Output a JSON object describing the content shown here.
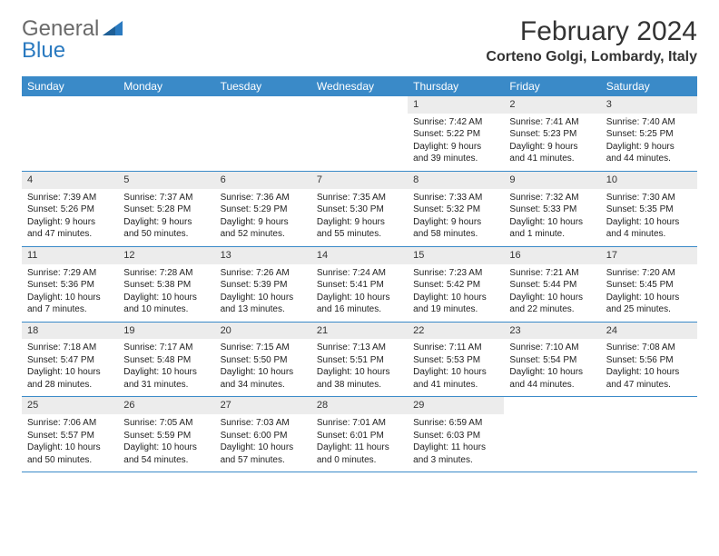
{
  "logo": {
    "text1": "General",
    "text2": "Blue"
  },
  "title": "February 2024",
  "location": "Corteno Golgi, Lombardy, Italy",
  "colors": {
    "header_bg": "#3a8ac8",
    "header_text": "#ffffff",
    "daynum_bg": "#ececec",
    "border": "#3a8ac8",
    "logo_gray": "#6a6a6a",
    "logo_blue": "#2a7ac0"
  },
  "dayNames": [
    "Sunday",
    "Monday",
    "Tuesday",
    "Wednesday",
    "Thursday",
    "Friday",
    "Saturday"
  ],
  "weeks": [
    [
      {
        "n": "",
        "sr": "",
        "ss": "",
        "dl": ""
      },
      {
        "n": "",
        "sr": "",
        "ss": "",
        "dl": ""
      },
      {
        "n": "",
        "sr": "",
        "ss": "",
        "dl": ""
      },
      {
        "n": "",
        "sr": "",
        "ss": "",
        "dl": ""
      },
      {
        "n": "1",
        "sr": "Sunrise: 7:42 AM",
        "ss": "Sunset: 5:22 PM",
        "dl": "Daylight: 9 hours and 39 minutes."
      },
      {
        "n": "2",
        "sr": "Sunrise: 7:41 AM",
        "ss": "Sunset: 5:23 PM",
        "dl": "Daylight: 9 hours and 41 minutes."
      },
      {
        "n": "3",
        "sr": "Sunrise: 7:40 AM",
        "ss": "Sunset: 5:25 PM",
        "dl": "Daylight: 9 hours and 44 minutes."
      }
    ],
    [
      {
        "n": "4",
        "sr": "Sunrise: 7:39 AM",
        "ss": "Sunset: 5:26 PM",
        "dl": "Daylight: 9 hours and 47 minutes."
      },
      {
        "n": "5",
        "sr": "Sunrise: 7:37 AM",
        "ss": "Sunset: 5:28 PM",
        "dl": "Daylight: 9 hours and 50 minutes."
      },
      {
        "n": "6",
        "sr": "Sunrise: 7:36 AM",
        "ss": "Sunset: 5:29 PM",
        "dl": "Daylight: 9 hours and 52 minutes."
      },
      {
        "n": "7",
        "sr": "Sunrise: 7:35 AM",
        "ss": "Sunset: 5:30 PM",
        "dl": "Daylight: 9 hours and 55 minutes."
      },
      {
        "n": "8",
        "sr": "Sunrise: 7:33 AM",
        "ss": "Sunset: 5:32 PM",
        "dl": "Daylight: 9 hours and 58 minutes."
      },
      {
        "n": "9",
        "sr": "Sunrise: 7:32 AM",
        "ss": "Sunset: 5:33 PM",
        "dl": "Daylight: 10 hours and 1 minute."
      },
      {
        "n": "10",
        "sr": "Sunrise: 7:30 AM",
        "ss": "Sunset: 5:35 PM",
        "dl": "Daylight: 10 hours and 4 minutes."
      }
    ],
    [
      {
        "n": "11",
        "sr": "Sunrise: 7:29 AM",
        "ss": "Sunset: 5:36 PM",
        "dl": "Daylight: 10 hours and 7 minutes."
      },
      {
        "n": "12",
        "sr": "Sunrise: 7:28 AM",
        "ss": "Sunset: 5:38 PM",
        "dl": "Daylight: 10 hours and 10 minutes."
      },
      {
        "n": "13",
        "sr": "Sunrise: 7:26 AM",
        "ss": "Sunset: 5:39 PM",
        "dl": "Daylight: 10 hours and 13 minutes."
      },
      {
        "n": "14",
        "sr": "Sunrise: 7:24 AM",
        "ss": "Sunset: 5:41 PM",
        "dl": "Daylight: 10 hours and 16 minutes."
      },
      {
        "n": "15",
        "sr": "Sunrise: 7:23 AM",
        "ss": "Sunset: 5:42 PM",
        "dl": "Daylight: 10 hours and 19 minutes."
      },
      {
        "n": "16",
        "sr": "Sunrise: 7:21 AM",
        "ss": "Sunset: 5:44 PM",
        "dl": "Daylight: 10 hours and 22 minutes."
      },
      {
        "n": "17",
        "sr": "Sunrise: 7:20 AM",
        "ss": "Sunset: 5:45 PM",
        "dl": "Daylight: 10 hours and 25 minutes."
      }
    ],
    [
      {
        "n": "18",
        "sr": "Sunrise: 7:18 AM",
        "ss": "Sunset: 5:47 PM",
        "dl": "Daylight: 10 hours and 28 minutes."
      },
      {
        "n": "19",
        "sr": "Sunrise: 7:17 AM",
        "ss": "Sunset: 5:48 PM",
        "dl": "Daylight: 10 hours and 31 minutes."
      },
      {
        "n": "20",
        "sr": "Sunrise: 7:15 AM",
        "ss": "Sunset: 5:50 PM",
        "dl": "Daylight: 10 hours and 34 minutes."
      },
      {
        "n": "21",
        "sr": "Sunrise: 7:13 AM",
        "ss": "Sunset: 5:51 PM",
        "dl": "Daylight: 10 hours and 38 minutes."
      },
      {
        "n": "22",
        "sr": "Sunrise: 7:11 AM",
        "ss": "Sunset: 5:53 PM",
        "dl": "Daylight: 10 hours and 41 minutes."
      },
      {
        "n": "23",
        "sr": "Sunrise: 7:10 AM",
        "ss": "Sunset: 5:54 PM",
        "dl": "Daylight: 10 hours and 44 minutes."
      },
      {
        "n": "24",
        "sr": "Sunrise: 7:08 AM",
        "ss": "Sunset: 5:56 PM",
        "dl": "Daylight: 10 hours and 47 minutes."
      }
    ],
    [
      {
        "n": "25",
        "sr": "Sunrise: 7:06 AM",
        "ss": "Sunset: 5:57 PM",
        "dl": "Daylight: 10 hours and 50 minutes."
      },
      {
        "n": "26",
        "sr": "Sunrise: 7:05 AM",
        "ss": "Sunset: 5:59 PM",
        "dl": "Daylight: 10 hours and 54 minutes."
      },
      {
        "n": "27",
        "sr": "Sunrise: 7:03 AM",
        "ss": "Sunset: 6:00 PM",
        "dl": "Daylight: 10 hours and 57 minutes."
      },
      {
        "n": "28",
        "sr": "Sunrise: 7:01 AM",
        "ss": "Sunset: 6:01 PM",
        "dl": "Daylight: 11 hours and 0 minutes."
      },
      {
        "n": "29",
        "sr": "Sunrise: 6:59 AM",
        "ss": "Sunset: 6:03 PM",
        "dl": "Daylight: 11 hours and 3 minutes."
      },
      {
        "n": "",
        "sr": "",
        "ss": "",
        "dl": ""
      },
      {
        "n": "",
        "sr": "",
        "ss": "",
        "dl": ""
      }
    ]
  ]
}
